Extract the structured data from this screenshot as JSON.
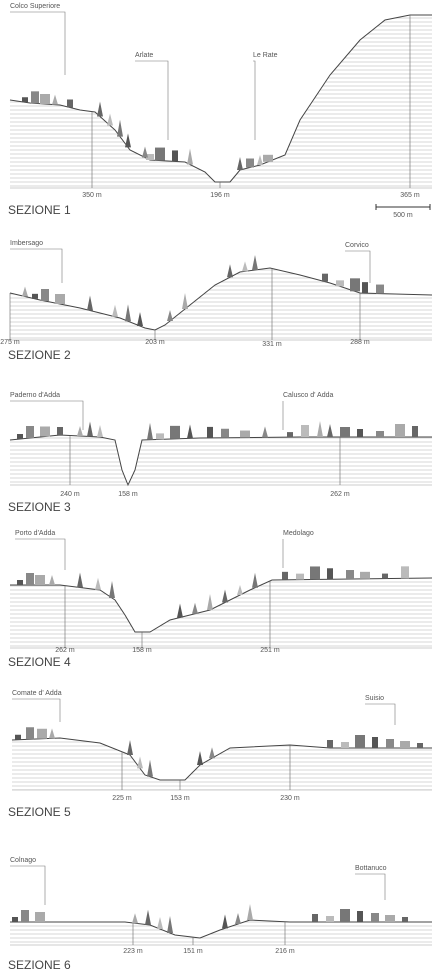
{
  "sections": [
    {
      "title": "SEZIONE 1",
      "places": [
        "Colco Superiore",
        "Arlate",
        "Le Rate"
      ],
      "elevations": [
        "350 m",
        "196 m",
        "365 m"
      ],
      "scale": "500 m"
    },
    {
      "title": "SEZIONE 2",
      "places": [
        "Imbersago",
        "Corvico"
      ],
      "elevations": [
        "275 m",
        "203 m",
        "331 m",
        "288 m"
      ]
    },
    {
      "title": "SEZIONE 3",
      "places": [
        "Paderno d'Adda",
        "Calusco d' Adda"
      ],
      "elevations": [
        "240 m",
        "158 m",
        "262 m"
      ]
    },
    {
      "title": "SEZIONE 4",
      "places": [
        "Porto d'Adda",
        "Medolago"
      ],
      "elevations": [
        "262 m",
        "158 m",
        "251 m"
      ]
    },
    {
      "title": "SEZIONE 5",
      "places": [
        "Comate d' Adda",
        "Suisio"
      ],
      "elevations": [
        "225 m",
        "153 m",
        "230 m"
      ]
    },
    {
      "title": "SEZIONE 6",
      "places": [
        "Colnago",
        "Bottanuco"
      ],
      "elevations": [
        "223 m",
        "151 m",
        "216 m"
      ]
    }
  ]
}
